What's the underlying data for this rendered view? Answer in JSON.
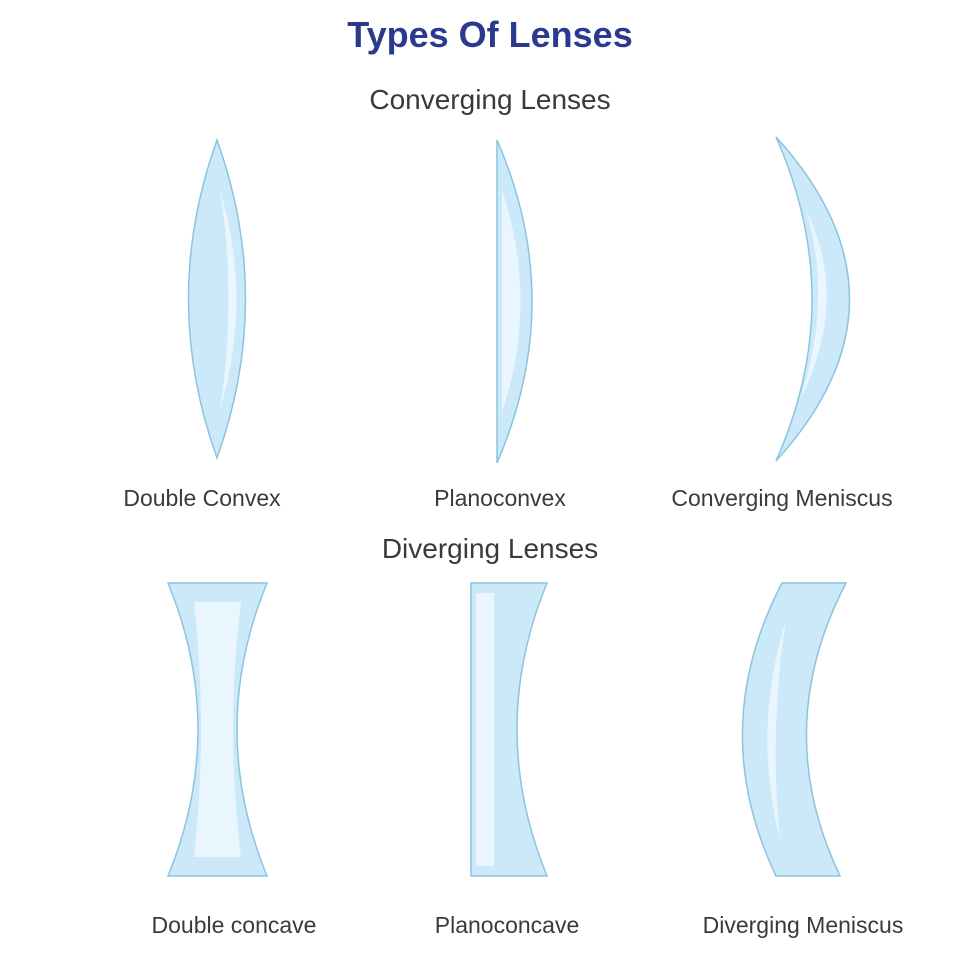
{
  "title": "Types Of Lenses",
  "converging": {
    "heading": "Converging Lenses",
    "lenses": [
      {
        "label": "Double Convex"
      },
      {
        "label": "Planoconvex"
      },
      {
        "label": "Converging Meniscus"
      }
    ]
  },
  "diverging": {
    "heading": "Diverging Lenses",
    "lenses": [
      {
        "label": "Double concave"
      },
      {
        "label": "Planoconcave"
      },
      {
        "label": "Diverging Meniscus"
      }
    ]
  },
  "colors": {
    "title": "#2b3a8c",
    "text": "#3a3a3a",
    "lens_fill": "#cbe9f8",
    "lens_highlight": "#e9f6fd",
    "lens_stroke": "#8cc3df"
  }
}
